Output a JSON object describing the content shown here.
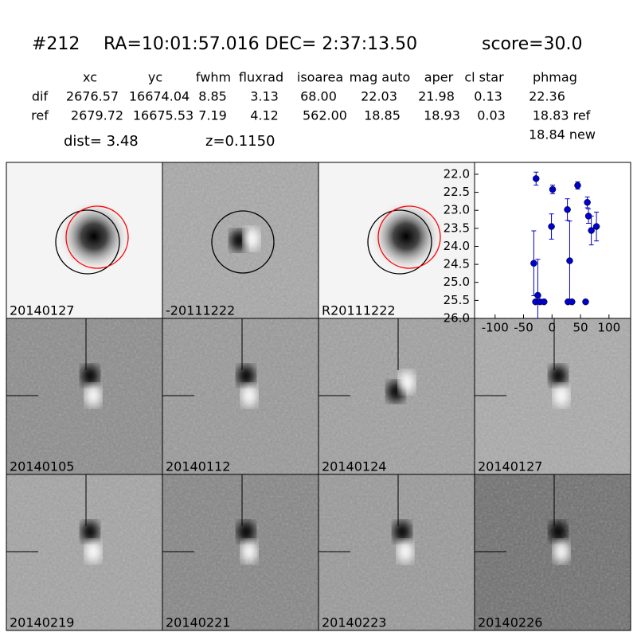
{
  "header": {
    "id": "#212",
    "coords": "RA=10:01:57.016 DEC= 2:37:13.50",
    "score": "score=30.0"
  },
  "table": {
    "columns": [
      "xc",
      "yc",
      "fwhm",
      "fluxrad",
      "isoarea",
      "mag auto",
      "aper",
      "cl star",
      "phmag"
    ],
    "rows": [
      [
        "dif",
        "2676.57",
        "16674.04",
        "8.85",
        "3.13",
        "68.00",
        "22.03",
        "21.98",
        "0.13",
        "22.36"
      ],
      [
        "ref",
        "2679.72",
        "16675.53",
        "7.19",
        "4.12",
        "562.00",
        "18.85",
        "18.93",
        "0.03",
        "18.83 ref"
      ]
    ],
    "dist": "dist=  3.48",
    "z": "z=0.1150",
    "new_mag": "18.84 new"
  },
  "panels": [
    {
      "label": "20140127"
    },
    {
      "label": "-20111222"
    },
    {
      "label": "R20111222"
    },
    {
      "label": "20140105"
    },
    {
      "label": "20140112"
    },
    {
      "label": "20140124"
    },
    {
      "label": "20140127",
      "label_color": "red"
    },
    {
      "label": "20140219"
    },
    {
      "label": "20140221"
    },
    {
      "label": "20140223"
    },
    {
      "label": "20140226"
    }
  ],
  "chart_data": {
    "type": "scatter",
    "color": "#0000cc",
    "y_inverted": true,
    "xlim": [
      -136,
      138
    ],
    "ylim": [
      21.67,
      26.0
    ],
    "xticks": [
      -100,
      -50,
      0,
      50,
      100
    ],
    "yticks": [
      {
        "value": 22.0,
        "label": "22.0"
      },
      {
        "value": 22.5,
        "label": "22.5"
      },
      {
        "value": 23.0,
        "label": "23.0"
      },
      {
        "value": 23.5,
        "label": "23.5"
      },
      {
        "value": 24.0,
        "label": "24.0"
      },
      {
        "value": 24.5,
        "label": "24.5"
      },
      {
        "value": 25.0,
        "label": "25.0"
      },
      {
        "value": 25.5,
        "label": "25.5"
      },
      {
        "value": 26.0,
        "label": "26.0"
      }
    ],
    "series": [
      {
        "x": [
          -28,
          -32,
          -25,
          -29,
          -21,
          -14,
          -1,
          1,
          27,
          31,
          28,
          35,
          45,
          62,
          64,
          69,
          78,
          59
        ],
        "values": [
          22.12,
          24.47,
          25.36,
          25.54,
          25.54,
          25.54,
          23.45,
          22.42,
          22.98,
          24.4,
          25.54,
          25.54,
          22.31,
          22.78,
          23.16,
          23.56,
          23.45,
          25.54
        ],
        "errors": [
          0.18,
          0.9,
          1.0,
          0.05,
          0.05,
          0.05,
          0.35,
          0.12,
          0.3,
          1.1,
          0.05,
          0.05,
          0.1,
          0.15,
          0.2,
          0.4,
          0.4,
          0.05
        ]
      }
    ]
  }
}
